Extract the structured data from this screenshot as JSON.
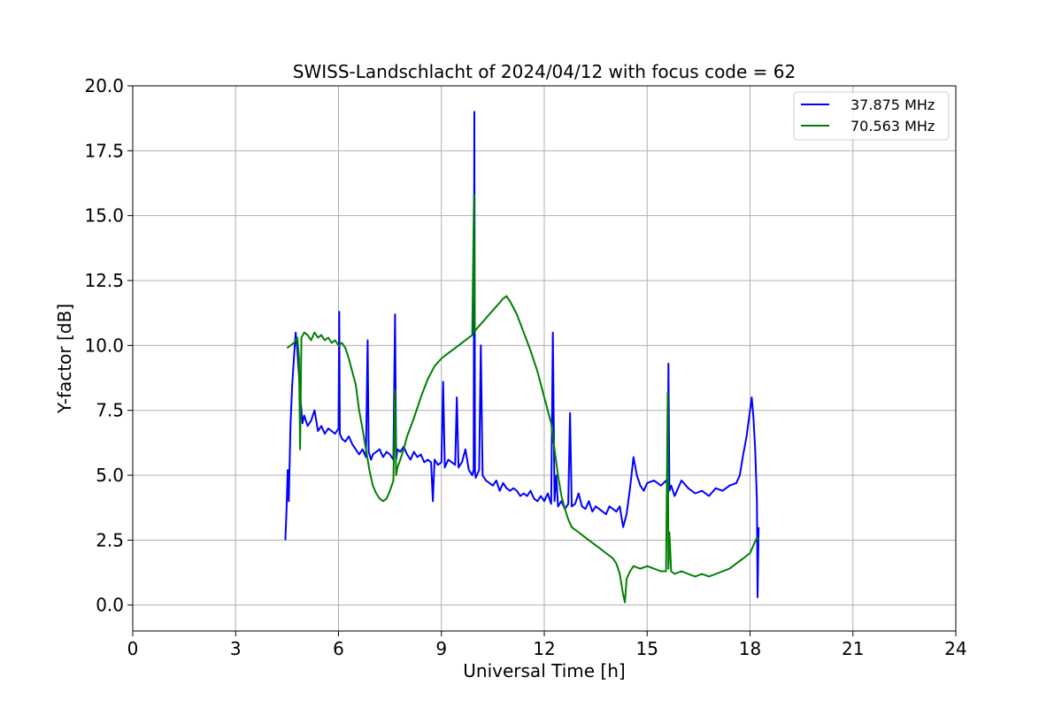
{
  "chart_data": {
    "type": "line",
    "title": "SWISS-Landschlacht of 2024/04/12 with focus code = 62",
    "xlabel": "Universal Time [h]",
    "ylabel": "Y-factor [dB]",
    "xlim": [
      0,
      24
    ],
    "ylim": [
      -1.0,
      20.0
    ],
    "xticks": [
      0,
      3,
      6,
      9,
      12,
      15,
      18,
      21,
      24
    ],
    "xtick_labels": [
      "0",
      "3",
      "6",
      "9",
      "12",
      "15",
      "18",
      "21",
      "24"
    ],
    "yticks": [
      0.0,
      2.5,
      5.0,
      7.5,
      10.0,
      12.5,
      15.0,
      17.5,
      20.0
    ],
    "ytick_labels": [
      "0.0",
      "2.5",
      "5.0",
      "7.5",
      "10.0",
      "12.5",
      "15.0",
      "17.5",
      "20.0"
    ],
    "grid": true,
    "legend_position": "top-right",
    "series": [
      {
        "name": "37.875 MHz",
        "color": "#0000ff",
        "x": [
          4.45,
          4.48,
          4.52,
          4.55,
          4.6,
          4.65,
          4.7,
          4.75,
          4.8,
          4.85,
          4.9,
          4.95,
          5.0,
          5.1,
          5.2,
          5.3,
          5.4,
          5.5,
          5.6,
          5.7,
          5.8,
          5.9,
          6.0,
          6.02,
          6.04,
          6.1,
          6.2,
          6.3,
          6.4,
          6.5,
          6.6,
          6.7,
          6.8,
          6.85,
          6.88,
          6.95,
          7.0,
          7.1,
          7.2,
          7.3,
          7.4,
          7.5,
          7.6,
          7.65,
          7.68,
          7.72,
          7.8,
          7.9,
          8.0,
          8.1,
          8.2,
          8.3,
          8.4,
          8.5,
          8.6,
          8.7,
          8.75,
          8.8,
          8.9,
          9.0,
          9.05,
          9.1,
          9.2,
          9.3,
          9.4,
          9.45,
          9.5,
          9.6,
          9.7,
          9.8,
          9.9,
          9.94,
          9.96,
          9.98,
          10.0,
          10.1,
          10.15,
          10.2,
          10.3,
          10.4,
          10.5,
          10.6,
          10.7,
          10.8,
          10.9,
          11.0,
          11.1,
          11.2,
          11.3,
          11.4,
          11.5,
          11.6,
          11.7,
          11.8,
          11.9,
          12.0,
          12.1,
          12.2,
          12.25,
          12.3,
          12.35,
          12.4,
          12.5,
          12.6,
          12.7,
          12.75,
          12.8,
          12.9,
          13.0,
          13.1,
          13.2,
          13.3,
          13.4,
          13.5,
          13.6,
          13.7,
          13.8,
          13.9,
          14.0,
          14.1,
          14.2,
          14.3,
          14.4,
          14.5,
          14.6,
          14.7,
          14.8,
          14.9,
          15.0,
          15.2,
          15.4,
          15.55,
          15.6,
          15.62,
          15.65,
          15.7,
          15.8,
          16.0,
          16.2,
          16.4,
          16.6,
          16.8,
          17.0,
          17.2,
          17.4,
          17.6,
          17.7,
          17.8,
          17.9,
          18.0,
          18.05,
          18.1,
          18.15,
          18.2,
          18.22,
          18.25
        ],
        "y": [
          2.5,
          3.5,
          5.2,
          4.0,
          7.0,
          8.5,
          9.5,
          10.5,
          9.8,
          8.8,
          7.8,
          7.0,
          7.3,
          6.9,
          7.1,
          7.5,
          6.7,
          6.9,
          6.6,
          6.8,
          6.7,
          6.6,
          6.8,
          11.3,
          6.6,
          6.4,
          6.3,
          6.5,
          6.2,
          6.0,
          5.8,
          6.0,
          5.7,
          10.2,
          5.9,
          5.6,
          5.8,
          5.9,
          6.0,
          5.7,
          5.9,
          5.8,
          5.6,
          11.2,
          5.6,
          6.0,
          5.9,
          6.1,
          5.8,
          5.6,
          5.9,
          5.7,
          5.8,
          5.5,
          5.6,
          5.5,
          4.0,
          5.6,
          5.4,
          5.5,
          8.6,
          5.3,
          5.6,
          5.5,
          5.4,
          8.0,
          5.3,
          5.5,
          6.0,
          5.2,
          5.0,
          5.2,
          19.0,
          5.1,
          4.9,
          5.2,
          10.0,
          5.0,
          4.8,
          4.7,
          4.6,
          4.8,
          4.4,
          4.7,
          4.5,
          4.4,
          4.5,
          4.4,
          4.2,
          4.3,
          4.2,
          4.4,
          4.1,
          4.0,
          4.2,
          4.0,
          4.3,
          3.9,
          10.5,
          4.0,
          5.0,
          3.8,
          4.0,
          3.7,
          3.9,
          7.4,
          3.8,
          3.9,
          4.3,
          3.8,
          3.7,
          4.0,
          3.6,
          3.8,
          3.7,
          3.6,
          3.5,
          3.8,
          3.7,
          3.6,
          3.8,
          3.0,
          3.5,
          4.5,
          5.7,
          5.0,
          4.6,
          4.4,
          4.7,
          4.8,
          4.6,
          4.8,
          4.5,
          9.3,
          4.4,
          4.6,
          4.2,
          4.8,
          4.5,
          4.3,
          4.4,
          4.2,
          4.5,
          4.4,
          4.6,
          4.7,
          5.0,
          5.8,
          6.5,
          7.5,
          8.0,
          7.2,
          6.0,
          4.0,
          0.3,
          3.0
        ]
      },
      {
        "name": "70.563 MHz",
        "color": "#008000",
        "x": [
          4.5,
          4.6,
          4.7,
          4.8,
          4.85,
          4.88,
          4.92,
          5.0,
          5.1,
          5.2,
          5.3,
          5.4,
          5.5,
          5.6,
          5.7,
          5.8,
          5.9,
          6.0,
          6.1,
          6.2,
          6.3,
          6.4,
          6.5,
          6.6,
          6.7,
          6.8,
          6.9,
          7.0,
          7.1,
          7.2,
          7.3,
          7.4,
          7.5,
          7.6,
          7.65,
          7.68,
          7.72,
          7.8,
          7.9,
          8.0,
          8.2,
          8.4,
          8.6,
          8.8,
          9.0,
          9.2,
          9.4,
          9.6,
          9.8,
          9.9,
          9.95,
          9.97,
          10.0,
          10.2,
          10.4,
          10.6,
          10.8,
          10.9,
          11.0,
          11.2,
          11.4,
          11.6,
          11.8,
          12.0,
          12.2,
          12.3,
          12.4,
          12.5,
          12.6,
          12.7,
          12.8,
          12.9,
          13.0,
          13.2,
          13.4,
          13.6,
          13.8,
          14.0,
          14.1,
          14.2,
          14.3,
          14.35,
          14.4,
          14.5,
          14.6,
          14.8,
          15.0,
          15.2,
          15.4,
          15.55,
          15.6,
          15.62,
          15.65,
          15.7,
          15.8,
          16.0,
          16.2,
          16.4,
          16.6,
          16.8,
          17.0,
          17.2,
          17.4,
          17.6,
          17.8,
          18.0,
          18.1,
          18.2,
          18.25
        ],
        "y": [
          9.9,
          10.0,
          10.1,
          10.3,
          9.5,
          6.0,
          10.3,
          10.5,
          10.4,
          10.2,
          10.5,
          10.3,
          10.4,
          10.2,
          10.3,
          10.1,
          10.2,
          10.0,
          10.1,
          9.9,
          9.5,
          9.0,
          8.5,
          7.5,
          6.8,
          6.0,
          5.2,
          4.6,
          4.3,
          4.1,
          4.0,
          4.1,
          4.4,
          4.8,
          8.3,
          5.0,
          5.3,
          5.6,
          6.0,
          6.5,
          7.2,
          8.0,
          8.7,
          9.2,
          9.5,
          9.7,
          9.9,
          10.1,
          10.3,
          10.4,
          15.8,
          10.5,
          10.6,
          10.9,
          11.2,
          11.5,
          11.8,
          11.9,
          11.7,
          11.2,
          10.5,
          9.8,
          9.0,
          8.0,
          7.0,
          6.0,
          5.0,
          4.2,
          3.7,
          3.3,
          3.0,
          2.9,
          2.8,
          2.6,
          2.4,
          2.2,
          2.0,
          1.8,
          1.6,
          1.2,
          0.4,
          0.1,
          1.0,
          1.3,
          1.5,
          1.4,
          1.5,
          1.4,
          1.3,
          1.3,
          8.2,
          1.4,
          2.8,
          1.3,
          1.2,
          1.3,
          1.2,
          1.1,
          1.2,
          1.1,
          1.2,
          1.3,
          1.4,
          1.6,
          1.8,
          2.0,
          2.3,
          2.6,
          2.5
        ]
      }
    ]
  }
}
